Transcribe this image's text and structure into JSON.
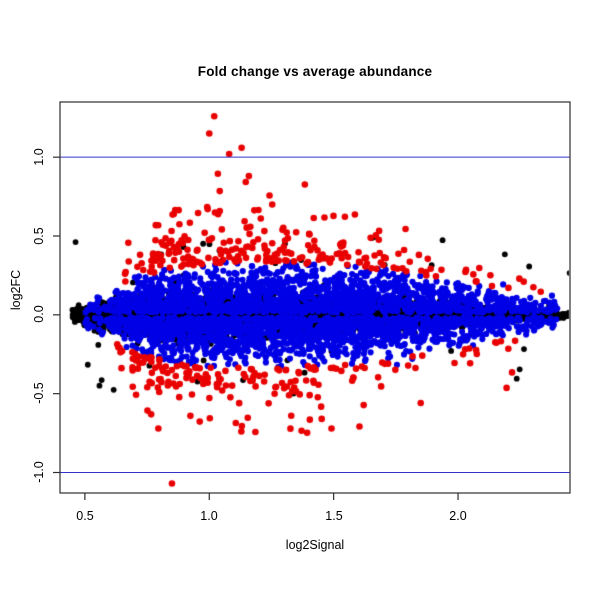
{
  "chart_data": {
    "type": "scatter",
    "title": "Fold change vs average abundance",
    "xlabel": "log2Signal",
    "ylabel": "log2FC",
    "xlim": [
      0.4,
      2.45
    ],
    "ylim": [
      -1.13,
      1.35
    ],
    "x_ticks": [
      0.5,
      1.0,
      1.5,
      2.0
    ],
    "x_tick_labels": [
      "0.5",
      "1.0",
      "1.5",
      "2.0"
    ],
    "y_ticks": [
      -1.0,
      -0.5,
      0.0,
      0.5,
      1.0
    ],
    "y_tick_labels": [
      "-1.0",
      "-0.5",
      "0.0",
      "0.5",
      "1.0"
    ],
    "grid": false,
    "legend": false,
    "background": "#ffffff",
    "box_color": "#2e2e2e",
    "tick_color": "#2e2e2e",
    "hlines": {
      "values": [
        1.0,
        -1.0
      ],
      "color": "#3333cc",
      "width": 1
    },
    "series": [
      {
        "name": "black-points",
        "color": "#000000",
        "count": 5200,
        "radius": 2.9,
        "x_density_anchors": {
          "x": [
            0.45,
            0.55,
            0.7,
            1.0,
            1.3,
            1.6,
            1.9,
            2.1,
            2.3,
            2.45
          ],
          "w": [
            0.5,
            1.0,
            1.0,
            1.0,
            0.95,
            0.9,
            0.75,
            0.5,
            0.28,
            0.1
          ]
        },
        "y_sigma_anchors": {
          "x": [
            0.45,
            0.55,
            0.7,
            0.9,
            1.2,
            1.5,
            1.8,
            2.0,
            2.2,
            2.45
          ],
          "s": [
            0.015,
            0.035,
            0.05,
            0.06,
            0.055,
            0.05,
            0.04,
            0.03,
            0.02,
            0.012
          ]
        },
        "stray_fraction": 0.012,
        "stray_min_abs_y": 0.12,
        "stray_max_abs_y": 0.5
      },
      {
        "name": "blue-points",
        "color": "#0000e6",
        "count": 3200,
        "radius": 3.1,
        "x_density_anchors": {
          "x": [
            0.5,
            0.6,
            0.7,
            0.85,
            1.0,
            1.3,
            1.6,
            1.8,
            2.0,
            2.2,
            2.4
          ],
          "w": [
            0.03,
            0.3,
            0.7,
            1.0,
            1.0,
            1.0,
            0.95,
            0.8,
            0.6,
            0.32,
            0.12
          ]
        },
        "envelope_anchors": {
          "x": [
            0.5,
            0.6,
            0.7,
            0.85,
            1.0,
            1.2,
            1.4,
            1.6,
            1.8,
            2.0,
            2.2,
            2.4
          ],
          "e": [
            0.1,
            0.16,
            0.24,
            0.3,
            0.33,
            0.34,
            0.33,
            0.31,
            0.27,
            0.22,
            0.15,
            0.1
          ]
        },
        "inner_offset": 0.015,
        "spread_factor": 0.42,
        "tail_fraction": 0.03,
        "max_abs_y": 0.58
      },
      {
        "name": "red-points",
        "color": "#e90000",
        "count": 430,
        "radius": 3.3,
        "x_density_anchors": {
          "x": [
            0.63,
            0.75,
            0.9,
            1.05,
            1.2,
            1.35,
            1.5,
            1.7,
            1.9,
            2.1,
            2.35
          ],
          "w": [
            0.1,
            0.9,
            1.0,
            1.0,
            0.9,
            0.7,
            0.5,
            0.28,
            0.18,
            0.12,
            0.05
          ]
        },
        "envelope_anchors": {
          "x": [
            0.63,
            0.8,
            1.0,
            1.1,
            1.3,
            1.5,
            1.7,
            1.9,
            2.1,
            2.35
          ],
          "e": [
            0.55,
            0.8,
            0.95,
            1.0,
            0.9,
            0.85,
            0.7,
            0.6,
            0.55,
            0.45
          ]
        },
        "inner_margin_factor": 0.95,
        "exp_mean_factor": 0.22,
        "upper_fraction": 0.58,
        "bottom_max_abs_y": 0.88
      }
    ],
    "notable_points": [
      {
        "x": 1.02,
        "y": 1.26,
        "series": "red-points"
      },
      {
        "x": 1.0,
        "y": 1.15,
        "series": "red-points"
      },
      {
        "x": 1.13,
        "y": 1.06,
        "series": "red-points"
      },
      {
        "x": 1.08,
        "y": 1.02,
        "series": "red-points"
      },
      {
        "x": 0.85,
        "y": -1.07,
        "series": "red-points"
      }
    ],
    "seed": 20240642
  }
}
